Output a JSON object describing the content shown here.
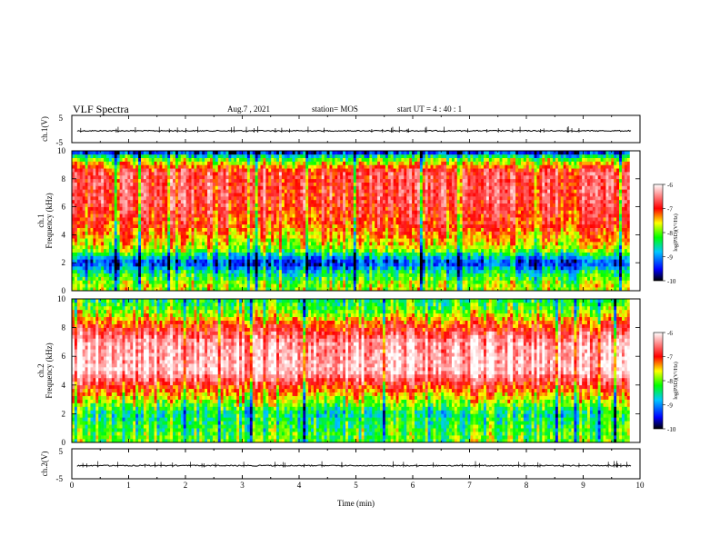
{
  "header": {
    "title": "VLF Spectra",
    "date": "Aug.7 , 2021",
    "station": "station= MOS",
    "start": "start UT = 4 : 40 : 1"
  },
  "chart_data": {
    "type": "heatmap",
    "xlabel": "Time (min)",
    "xlim": [
      0,
      10
    ],
    "x_ticks": [
      "0",
      "1",
      "2",
      "3",
      "4",
      "5",
      "6",
      "7",
      "8",
      "9",
      "10"
    ],
    "panels": [
      {
        "id": "ch1-waveform",
        "type": "line",
        "ylabel": "ch.1(V)",
        "ylim": [
          -5,
          5
        ],
        "y_ticks": [
          "5",
          "-5"
        ]
      },
      {
        "id": "ch1-spectrogram",
        "type": "heatmap",
        "ylabel_1": "ch.1",
        "ylabel_2": "Frequency (kHz)",
        "ylim": [
          0,
          10
        ],
        "y_ticks": [
          "0",
          "2",
          "4",
          "6",
          "8",
          "10"
        ],
        "description_profile": [
          {
            "freq_khz": 0.5,
            "log_psd": -8.0
          },
          {
            "freq_khz": 1.5,
            "log_psd": -8.8
          },
          {
            "freq_khz": 2.0,
            "log_psd": -9.5
          },
          {
            "freq_khz": 3.0,
            "log_psd": -8.0
          },
          {
            "freq_khz": 4.5,
            "log_psd": -7.3
          },
          {
            "freq_khz": 6.5,
            "log_psd": -6.9
          },
          {
            "freq_khz": 8.5,
            "log_psd": -6.9
          },
          {
            "freq_khz": 9.5,
            "log_psd": -8.3
          },
          {
            "freq_khz": 10,
            "log_psd": -9.8
          }
        ]
      },
      {
        "id": "ch2-spectrogram",
        "type": "heatmap",
        "ylabel_1": "ch.2",
        "ylabel_2": "Frequency (kHz)",
        "ylim": [
          0,
          10
        ],
        "y_ticks": [
          "0",
          "2",
          "4",
          "6",
          "8",
          "10"
        ],
        "description_profile": [
          {
            "freq_khz": 0.5,
            "log_psd": -8.2
          },
          {
            "freq_khz": 2.0,
            "log_psd": -8.6
          },
          {
            "freq_khz": 3.5,
            "log_psd": -7.5
          },
          {
            "freq_khz": 5.0,
            "log_psd": -6.2
          },
          {
            "freq_khz": 7.0,
            "log_psd": -6.4
          },
          {
            "freq_khz": 8.2,
            "log_psd": -7.2
          },
          {
            "freq_khz": 9.0,
            "log_psd": -8.0
          },
          {
            "freq_khz": 10,
            "log_psd": -8.5
          }
        ]
      },
      {
        "id": "ch2-waveform",
        "type": "line",
        "ylabel": "ch.2(V)",
        "ylim": [
          -5,
          5
        ],
        "y_ticks": [
          "5",
          "-5"
        ]
      }
    ],
    "colorbar": {
      "label": "log(PSD)(V²/Hz)",
      "range": [
        -10,
        -6
      ],
      "ticks": [
        "-6",
        "-7",
        "-8",
        "-9",
        "-10"
      ],
      "colors": [
        "#000080",
        "#0000ff",
        "#00ffff",
        "#00ff00",
        "#ffff00",
        "#ff0000",
        "#ffffff"
      ]
    }
  }
}
